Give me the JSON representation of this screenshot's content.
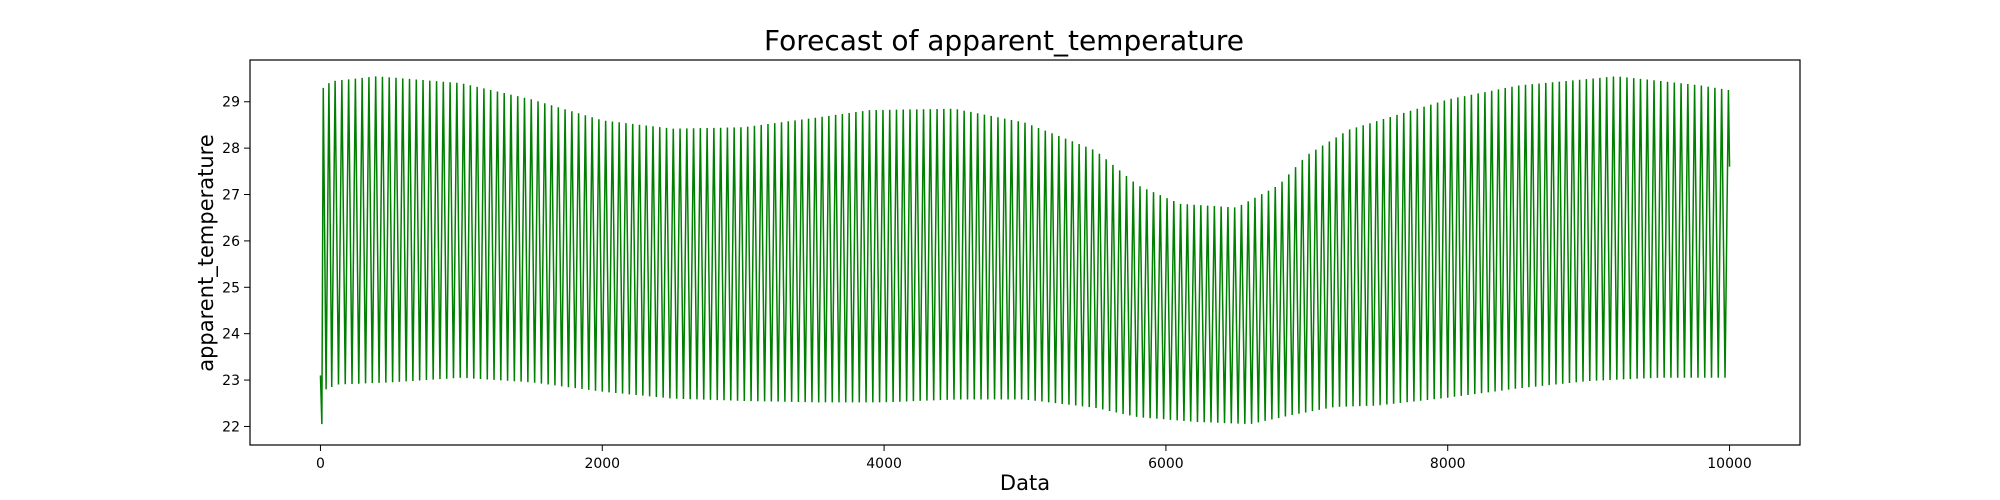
{
  "chart_data": {
    "type": "line",
    "title": "Forecast of apparent_temperature",
    "xlabel": "Data",
    "ylabel": "apparent_temperature",
    "xlim": [
      -500,
      10500
    ],
    "ylim": [
      21.6,
      29.9
    ],
    "xticks": [
      0,
      2000,
      4000,
      6000,
      8000,
      10000
    ],
    "yticks": [
      22,
      23,
      24,
      25,
      26,
      27,
      28,
      29
    ],
    "grid": false,
    "legend": "none",
    "series": [
      {
        "color": "#008000",
        "x_range": [
          0,
          10000
        ],
        "oscillation_period": 48,
        "initial_points": [
          {
            "x": 0,
            "y": 23.1
          },
          {
            "x": 10,
            "y": 22.05
          },
          {
            "x": 20,
            "y": 29.3
          },
          {
            "x": 40,
            "y": 22.8
          },
          {
            "x": 60,
            "y": 29.4
          },
          {
            "x": 80,
            "y": 22.85
          }
        ],
        "upper_envelope": [
          {
            "x": 100,
            "y": 29.45
          },
          {
            "x": 400,
            "y": 29.55
          },
          {
            "x": 1000,
            "y": 29.4
          },
          {
            "x": 1500,
            "y": 29.05
          },
          {
            "x": 2000,
            "y": 28.6
          },
          {
            "x": 2500,
            "y": 28.42
          },
          {
            "x": 3000,
            "y": 28.45
          },
          {
            "x": 3500,
            "y": 28.65
          },
          {
            "x": 3900,
            "y": 28.82
          },
          {
            "x": 4500,
            "y": 28.85
          },
          {
            "x": 5000,
            "y": 28.55
          },
          {
            "x": 5500,
            "y": 27.95
          },
          {
            "x": 5800,
            "y": 27.2
          },
          {
            "x": 6100,
            "y": 26.8
          },
          {
            "x": 6500,
            "y": 26.72
          },
          {
            "x": 6800,
            "y": 27.2
          },
          {
            "x": 7000,
            "y": 27.85
          },
          {
            "x": 7300,
            "y": 28.4
          },
          {
            "x": 8000,
            "y": 29.05
          },
          {
            "x": 8500,
            "y": 29.35
          },
          {
            "x": 9200,
            "y": 29.55
          },
          {
            "x": 9800,
            "y": 29.35
          },
          {
            "x": 10000,
            "y": 29.25
          }
        ],
        "lower_envelope": [
          {
            "x": 100,
            "y": 22.9
          },
          {
            "x": 500,
            "y": 22.95
          },
          {
            "x": 1000,
            "y": 23.05
          },
          {
            "x": 1500,
            "y": 22.95
          },
          {
            "x": 2000,
            "y": 22.75
          },
          {
            "x": 2500,
            "y": 22.6
          },
          {
            "x": 3000,
            "y": 22.55
          },
          {
            "x": 3500,
            "y": 22.52
          },
          {
            "x": 4000,
            "y": 22.52
          },
          {
            "x": 4500,
            "y": 22.58
          },
          {
            "x": 5000,
            "y": 22.58
          },
          {
            "x": 5500,
            "y": 22.4
          },
          {
            "x": 5800,
            "y": 22.2
          },
          {
            "x": 6200,
            "y": 22.1
          },
          {
            "x": 6600,
            "y": 22.05
          },
          {
            "x": 6900,
            "y": 22.25
          },
          {
            "x": 7200,
            "y": 22.42
          },
          {
            "x": 7500,
            "y": 22.45
          },
          {
            "x": 8000,
            "y": 22.62
          },
          {
            "x": 8500,
            "y": 22.82
          },
          {
            "x": 9000,
            "y": 22.98
          },
          {
            "x": 9500,
            "y": 23.05
          },
          {
            "x": 10000,
            "y": 23.05
          }
        ],
        "final_value": 27.6
      }
    ]
  }
}
